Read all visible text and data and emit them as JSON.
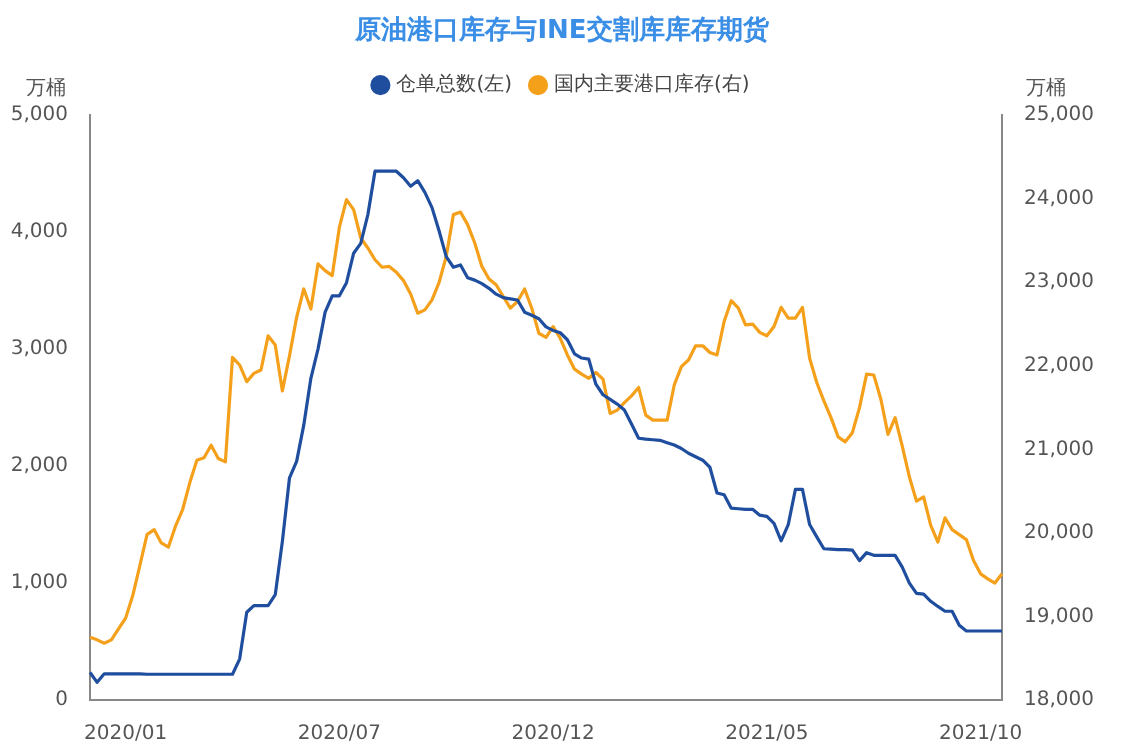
{
  "chart_data": {
    "type": "line",
    "title": "原油港口库存与INE交割库库存期货",
    "ylabel": "万桶",
    "y2label": "万桶",
    "legend": "top",
    "categories": [
      null,
      null,
      null,
      null,
      null,
      "2020/01",
      null,
      null,
      null,
      null,
      null,
      null,
      null,
      null,
      null,
      null,
      null,
      null,
      null,
      null,
      null,
      null,
      null,
      null,
      null,
      null,
      null,
      null,
      null,
      null,
      null,
      null,
      null,
      null,
      null,
      "2020/07",
      null,
      null,
      null,
      null,
      null,
      null,
      null,
      null,
      null,
      null,
      null,
      null,
      null,
      null,
      null,
      null,
      null,
      null,
      null,
      null,
      null,
      null,
      null,
      null,
      null,
      null,
      null,
      null,
      null,
      "2020/12",
      null,
      null,
      null,
      null,
      null,
      null,
      null,
      null,
      null,
      null,
      null,
      null,
      null,
      null,
      null,
      null,
      null,
      null,
      null,
      null,
      null,
      null,
      null,
      null,
      null,
      null,
      null,
      null,
      null,
      "2021/05",
      null,
      null,
      null,
      null,
      null,
      null,
      null,
      null,
      null,
      null,
      null,
      null,
      null,
      null,
      null,
      null,
      null,
      null,
      null,
      null,
      null,
      null,
      null,
      null,
      null,
      null,
      null,
      null,
      null,
      "2021/10",
      null,
      null,
      null
    ],
    "ylim": [
      0,
      5000
    ],
    "yticks": [
      0,
      {
        "value": 1000,
        "label": "1,000"
      },
      {
        "value": 2000,
        "label": "2,000"
      },
      {
        "value": 3000,
        "label": "3,000"
      },
      {
        "value": 4000,
        "label": "4,000"
      },
      {
        "value": 5000,
        "label": "5,000"
      }
    ],
    "y2lim": [
      18000,
      25000
    ],
    "y2ticks": [
      {
        "value": 18000,
        "label": "18,000"
      },
      {
        "value": 19000,
        "label": "19,000"
      },
      {
        "value": 20000,
        "label": "20,000"
      },
      {
        "value": 21000,
        "label": "21,000"
      },
      {
        "value": 22000,
        "label": "22,000"
      },
      {
        "value": 23000,
        "label": "23,000"
      },
      {
        "value": 24000,
        "label": "24,000"
      },
      {
        "value": 25000,
        "label": "25,000"
      }
    ],
    "series": [
      {
        "name": "仓单总数(左)",
        "color": "#1f4e9f",
        "values": [
          235,
          151,
          224,
          224,
          224,
          224,
          224,
          224,
          220,
          220,
          220,
          220,
          220,
          220,
          220,
          220,
          220,
          220,
          220,
          220,
          220,
          350,
          750,
          807,
          807,
          807,
          900,
          1356,
          1900,
          2040,
          2350,
          2750,
          3000,
          3316,
          3456,
          3456,
          3568,
          3820,
          3904,
          4150,
          4521,
          4521,
          4521,
          4521,
          4465,
          4392,
          4440,
          4340,
          4210,
          4010,
          3790,
          3700,
          3720,
          3610,
          3590,
          3560,
          3520,
          3470,
          3440,
          3430,
          3420,
          3316,
          3290,
          3260,
          3190,
          3160,
          3140,
          3080,
          2960,
          2924,
          2915,
          2700,
          2610,
          2570,
          2530,
          2480,
          2360,
          2238,
          2230,
          2225,
          2220,
          2200,
          2180,
          2150,
          2110,
          2080,
          2050,
          1990,
          1770,
          1755,
          1640,
          1635,
          1630,
          1631,
          1580,
          1570,
          1510,
          1361,
          1500,
          1800,
          1800,
          1500,
          1395,
          1293,
          1290,
          1285,
          1285,
          1282,
          1192,
          1260,
          1237,
          1237,
          1237,
          1237,
          1136,
          1000,
          911,
          905,
          844,
          800,
          759,
          759,
          640,
          590,
          590,
          590,
          590,
          590,
          590
        ]
      },
      {
        "name": "国内主要港口库存(右)",
        "color": "#f5a01a",
        "axis": "y2",
        "values": [
          18750,
          18720,
          18680,
          18720,
          18850,
          18980,
          19250,
          19610,
          19980,
          20040,
          19880,
          19830,
          20080,
          20280,
          20600,
          20870,
          20900,
          21050,
          20890,
          20850,
          22100,
          22010,
          21810,
          21910,
          21950,
          22360,
          22250,
          21700,
          22120,
          22580,
          22920,
          22680,
          23220,
          23140,
          23080,
          23660,
          23990,
          23870,
          23530,
          23410,
          23270,
          23180,
          23190,
          23120,
          23020,
          22860,
          22630,
          22670,
          22790,
          23000,
          23310,
          23810,
          23840,
          23690,
          23470,
          23190,
          23040,
          22970,
          22830,
          22690,
          22770,
          22920,
          22690,
          22390,
          22340,
          22470,
          22330,
          22130,
          21960,
          21900,
          21850,
          21920,
          21840,
          21430,
          21470,
          21560,
          21640,
          21740,
          21410,
          21350,
          21350,
          21350,
          21770,
          21990,
          22070,
          22240,
          22240,
          22160,
          22130,
          22530,
          22780,
          22690,
          22490,
          22500,
          22400,
          22360,
          22470,
          22700,
          22570,
          22570,
          22700,
          22090,
          21800,
          21580,
          21380,
          21150,
          21090,
          21200,
          21500,
          21900,
          21890,
          21600,
          21180,
          21380,
          21040,
          20670,
          20380,
          20430,
          20090,
          19890,
          20180,
          20040,
          19980,
          19920,
          19670,
          19510,
          19450,
          19400,
          19510
        ]
      }
    ]
  }
}
